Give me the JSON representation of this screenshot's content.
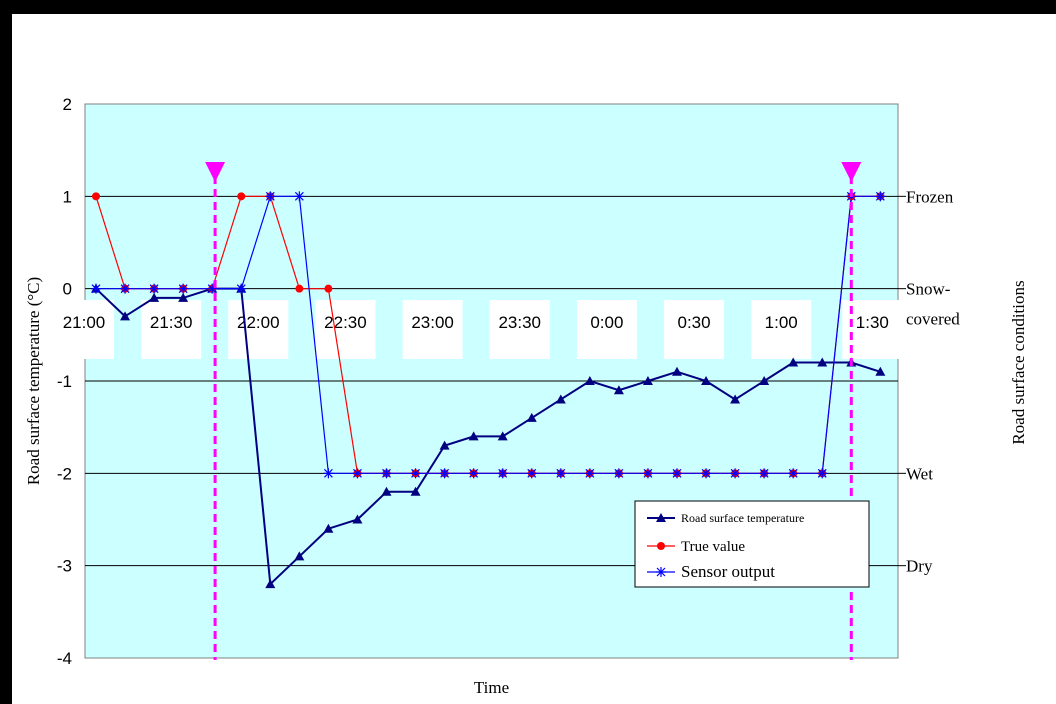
{
  "chart_data": {
    "type": "line",
    "xlabel": "Time",
    "ylabel": "Road surface temperature (°C)",
    "y2label": "Road surface conditions",
    "ylim": [
      -4,
      2
    ],
    "yticks": [
      "2",
      "1",
      "0",
      "-1",
      "-2",
      "-3",
      "-4"
    ],
    "x_tick_labels": [
      "21:00",
      "21:30",
      "22:00",
      "22:30",
      "23:00",
      "23:30",
      "0:00",
      "0:30",
      "1:00",
      "1:30"
    ],
    "x_tick_index": [
      0,
      3,
      6,
      9,
      12,
      15,
      18,
      21,
      24,
      27
    ],
    "condition_labels": [
      {
        "label": "Frozen",
        "value": 1
      },
      {
        "label": "Snow-",
        "value": 0
      },
      {
        "label": "covered",
        "value": -0.3
      },
      {
        "label": "Wet",
        "value": -2
      },
      {
        "label": "Dry",
        "value": -3
      }
    ],
    "series": [
      {
        "name": "Road surface temperature",
        "color": "#000080",
        "marker": "triangle",
        "values": [
          0,
          -0.3,
          -0.1,
          -0.1,
          0,
          0,
          -3.2,
          -2.9,
          -2.6,
          -2.5,
          -2.2,
          -2.2,
          -1.7,
          -1.6,
          -1.6,
          -1.4,
          -1.2,
          -1.0,
          -1.1,
          -1.0,
          -0.9,
          -1.0,
          -1.2,
          -1.0,
          -0.8,
          -0.8,
          -0.8,
          -0.9
        ]
      },
      {
        "name": "True value",
        "color": "#ff0000",
        "marker": "circle",
        "values": [
          1,
          0,
          0,
          0,
          0,
          1,
          1,
          0,
          0,
          -2,
          -2,
          -2,
          -2,
          -2,
          -2,
          -2,
          -2,
          -2,
          -2,
          -2,
          -2,
          -2,
          -2,
          -2,
          -2,
          -2,
          1,
          1
        ]
      },
      {
        "name": "Sensor output",
        "color": "#0000ff",
        "marker": "asterisk",
        "values": [
          0,
          0,
          0,
          0,
          0,
          0,
          1,
          1,
          -2,
          -2,
          -2,
          -2,
          -2,
          -2,
          -2,
          -2,
          -2,
          -2,
          -2,
          -2,
          -2,
          -2,
          -2,
          -2,
          -2,
          -2,
          1,
          1
        ]
      }
    ],
    "event_markers": [
      {
        "x_index": 4.1,
        "color": "#ff00ff"
      },
      {
        "x_index": 26,
        "color": "#ff00ff"
      }
    ],
    "plot_background": "#ccffff",
    "grid": true,
    "legend_position": "bottom-right"
  }
}
